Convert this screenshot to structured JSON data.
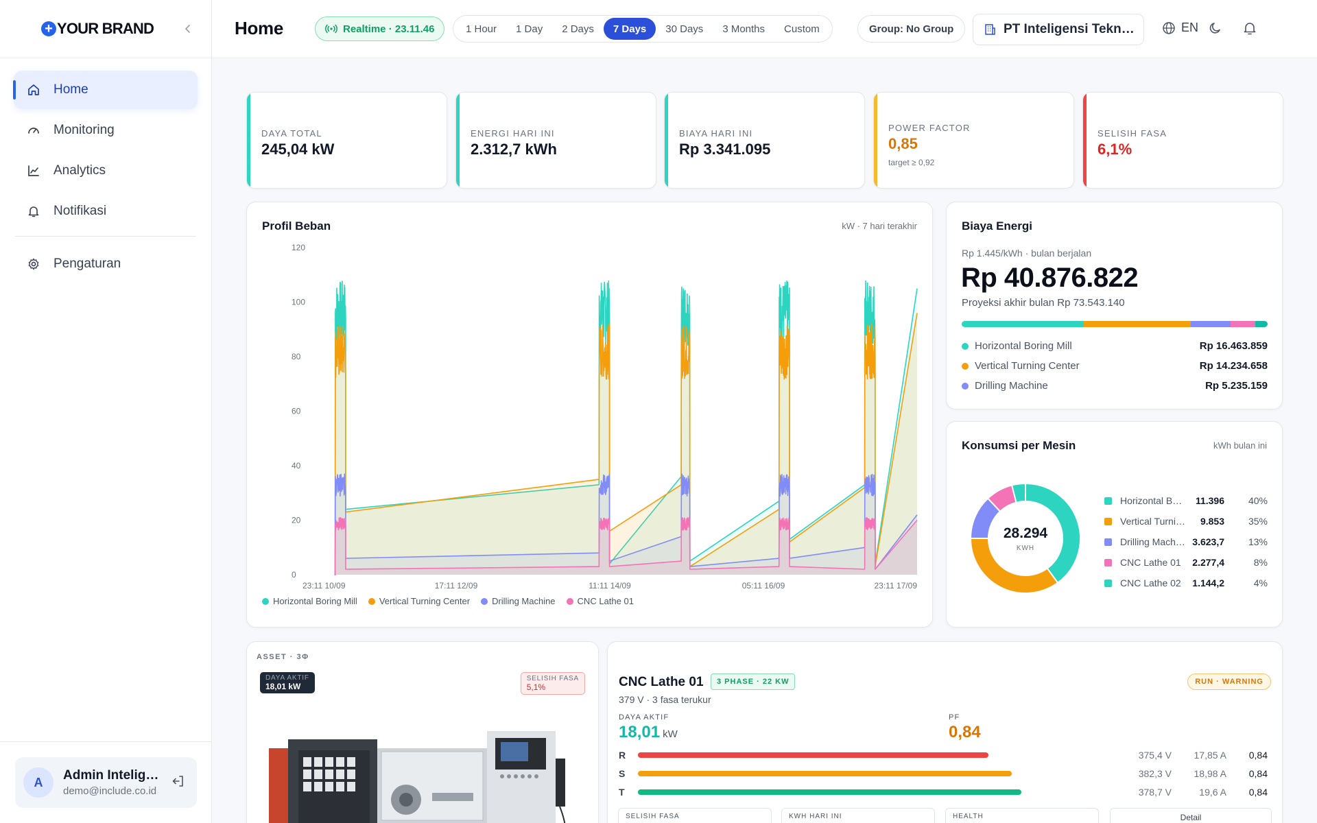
{
  "brand": {
    "logo_glyph": "+",
    "name": "YOUR BRAND"
  },
  "sidebar": {
    "items": [
      {
        "label": "Home",
        "icon": "home-icon",
        "active": true
      },
      {
        "label": "Monitoring",
        "icon": "gauge-icon",
        "active": false
      },
      {
        "label": "Analytics",
        "icon": "chart-line-icon",
        "active": false
      },
      {
        "label": "Notifikasi",
        "icon": "bell-icon",
        "active": false
      },
      {
        "label": "Pengaturan",
        "icon": "gear-icon",
        "active": false
      }
    ],
    "user": {
      "initial": "A",
      "name": "Admin Inteligensi",
      "email": "demo@include.co.id"
    }
  },
  "header": {
    "title": "Home",
    "realtime_label": "Realtime · 23.11.46",
    "ranges": [
      "1 Hour",
      "1 Day",
      "2 Days",
      "7 Days",
      "30 Days",
      "3 Months",
      "Custom"
    ],
    "active_range": "7 Days",
    "group_label": "Group: No Group",
    "company": "PT Inteligensi Teknologi",
    "language": "EN"
  },
  "kpis": [
    {
      "label": "DAYA TOTAL",
      "value": "245,04 kW",
      "accent": "#2dd4bf"
    },
    {
      "label": "ENERGI HARI INI",
      "value": "2.312,7 kWh",
      "accent": "#2dd4bf"
    },
    {
      "label": "BIAYA HARI INI",
      "value": "Rp 3.341.095",
      "accent": "#2dd4bf"
    },
    {
      "label": "POWER FACTOR",
      "value": "0,85",
      "sub": "target ≥ 0,92",
      "accent": "#f5b82e"
    },
    {
      "label": "SELISIH FASA",
      "value": "6,1%",
      "accent": "#ef4444"
    }
  ],
  "load_profile": {
    "title": "Profil Beban",
    "hint": "kW · 7 hari terakhir"
  },
  "chart_data": {
    "type": "area",
    "ylim": [
      0,
      120
    ],
    "yticks": [
      0,
      20,
      40,
      60,
      80,
      100,
      120
    ],
    "xticks": [
      "23:11 10/09",
      "17:11 12/09",
      "11:11 14/09",
      "05:11 16/09",
      "23:11 17/09"
    ],
    "x_range_hours": [
      0,
      168
    ],
    "operating_windows_hours": [
      [
        1.5,
        4.5
      ],
      [
        77,
        80
      ],
      [
        100.5,
        103
      ],
      [
        128.5,
        131.5
      ],
      [
        153,
        156
      ]
    ],
    "series": [
      {
        "name": "Horizontal Boring Mill",
        "color": "#2dd4bf",
        "run_peak": 108,
        "idle_points": [
          [
            4.5,
            24
          ],
          [
            77,
            33
          ],
          [
            80,
            4
          ],
          [
            100.5,
            36
          ],
          [
            103,
            5
          ],
          [
            128.5,
            27
          ],
          [
            131.5,
            13
          ],
          [
            153,
            33
          ],
          [
            156,
            4
          ],
          [
            168,
            105
          ]
        ]
      },
      {
        "name": "Vertical Turning Center",
        "color": "#f59e0b",
        "run_peak": 92,
        "idle_points": [
          [
            4.5,
            23
          ],
          [
            77,
            35
          ],
          [
            80,
            16
          ],
          [
            100.5,
            33
          ],
          [
            103,
            3
          ],
          [
            128.5,
            24
          ],
          [
            131.5,
            12
          ],
          [
            153,
            32
          ],
          [
            156,
            3
          ],
          [
            168,
            96
          ]
        ]
      },
      {
        "name": "Drilling Machine",
        "color": "#818cf8",
        "run_peak": 37,
        "idle_points": [
          [
            4.5,
            6
          ],
          [
            77,
            8
          ],
          [
            80,
            5
          ],
          [
            100.5,
            14
          ],
          [
            103,
            3
          ],
          [
            128.5,
            6
          ],
          [
            131.5,
            6
          ],
          [
            153,
            10
          ],
          [
            156,
            2
          ],
          [
            168,
            22
          ]
        ]
      },
      {
        "name": "CNC Lathe 01",
        "color": "#f472b6",
        "run_peak": 21,
        "idle_points": [
          [
            4.5,
            2
          ],
          [
            77,
            3
          ],
          [
            80,
            3
          ],
          [
            100.5,
            5
          ],
          [
            103,
            2
          ],
          [
            128.5,
            3
          ],
          [
            131.5,
            3
          ],
          [
            153,
            2
          ],
          [
            156,
            2
          ],
          [
            168,
            20
          ]
        ]
      }
    ]
  },
  "energy_cost": {
    "title": "Biaya Energi",
    "sub": "Rp 1.445/kWh · bulan berjalan",
    "total": "Rp 40.876.822",
    "projection": "Proyeksi akhir bulan Rp 73.543.140",
    "bar_shares": [
      40,
      35,
      13,
      8,
      4
    ],
    "bar_colors": [
      "#2dd4bf",
      "#f59e0b",
      "#818cf8",
      "#f472b6",
      "#14b8a6"
    ],
    "rows": [
      {
        "name": "Horizontal Boring Mill",
        "value": "Rp 16.463.859",
        "color": "#2dd4bf"
      },
      {
        "name": "Vertical Turning Center",
        "value": "Rp 14.234.658",
        "color": "#f59e0b"
      },
      {
        "name": "Drilling Machine",
        "value": "Rp 5.235.159",
        "color": "#818cf8"
      }
    ]
  },
  "consumption": {
    "title": "Konsumsi per Mesin",
    "hint": "kWh bulan ini",
    "total": "28.294",
    "unit": "KWH",
    "rows": [
      {
        "name": "Horizontal Boring Mill",
        "value": "11.396",
        "pct": "40%",
        "share": 40,
        "color": "#2dd4bf"
      },
      {
        "name": "Vertical Turning Center",
        "value": "9.853",
        "pct": "35%",
        "share": 35,
        "color": "#f59e0b"
      },
      {
        "name": "Drilling Machine",
        "value": "3.623,7",
        "pct": "13%",
        "share": 13,
        "color": "#818cf8"
      },
      {
        "name": "CNC Lathe 01",
        "value": "2.277,4",
        "pct": "8%",
        "share": 8,
        "color": "#f472b6"
      },
      {
        "name": "CNC Lathe 02",
        "value": "1.144,2",
        "pct": "4%",
        "share": 4,
        "color": "#2dd4bf"
      }
    ]
  },
  "asset": {
    "tag": "ASSET · 3Φ",
    "active_label": "DAYA AKTIF",
    "active_value": "18,01 kW",
    "delta_label": "SELISIH FASA",
    "delta_value": "5,1%"
  },
  "machine": {
    "name": "CNC Lathe 01",
    "phase_badge": "3 PHASE · 22 KW",
    "status_badge": "RUN · WARNING",
    "sub": "379 V · 3 fasa terukur",
    "active_label": "DAYA AKTIF",
    "active_value": "18,01",
    "active_unit": "kW",
    "pf_label": "PF",
    "pf_value": "0,84",
    "phases": [
      {
        "name": "R",
        "voltage": "375,4 V",
        "current": "17,85 A",
        "pf": "0,84",
        "level": 0.74,
        "color": "#ef4444"
      },
      {
        "name": "S",
        "voltage": "382,3 V",
        "current": "18,98 A",
        "pf": "0,84",
        "level": 0.79,
        "color": "#f59e0b"
      },
      {
        "name": "T",
        "voltage": "378,7 V",
        "current": "19,6 A",
        "pf": "0,84",
        "level": 0.81,
        "color": "#10b981"
      }
    ],
    "mini_labels": [
      "SELISIH FASA",
      "KWH HARI INI",
      "HEALTH"
    ],
    "detail_label": "Detail"
  }
}
